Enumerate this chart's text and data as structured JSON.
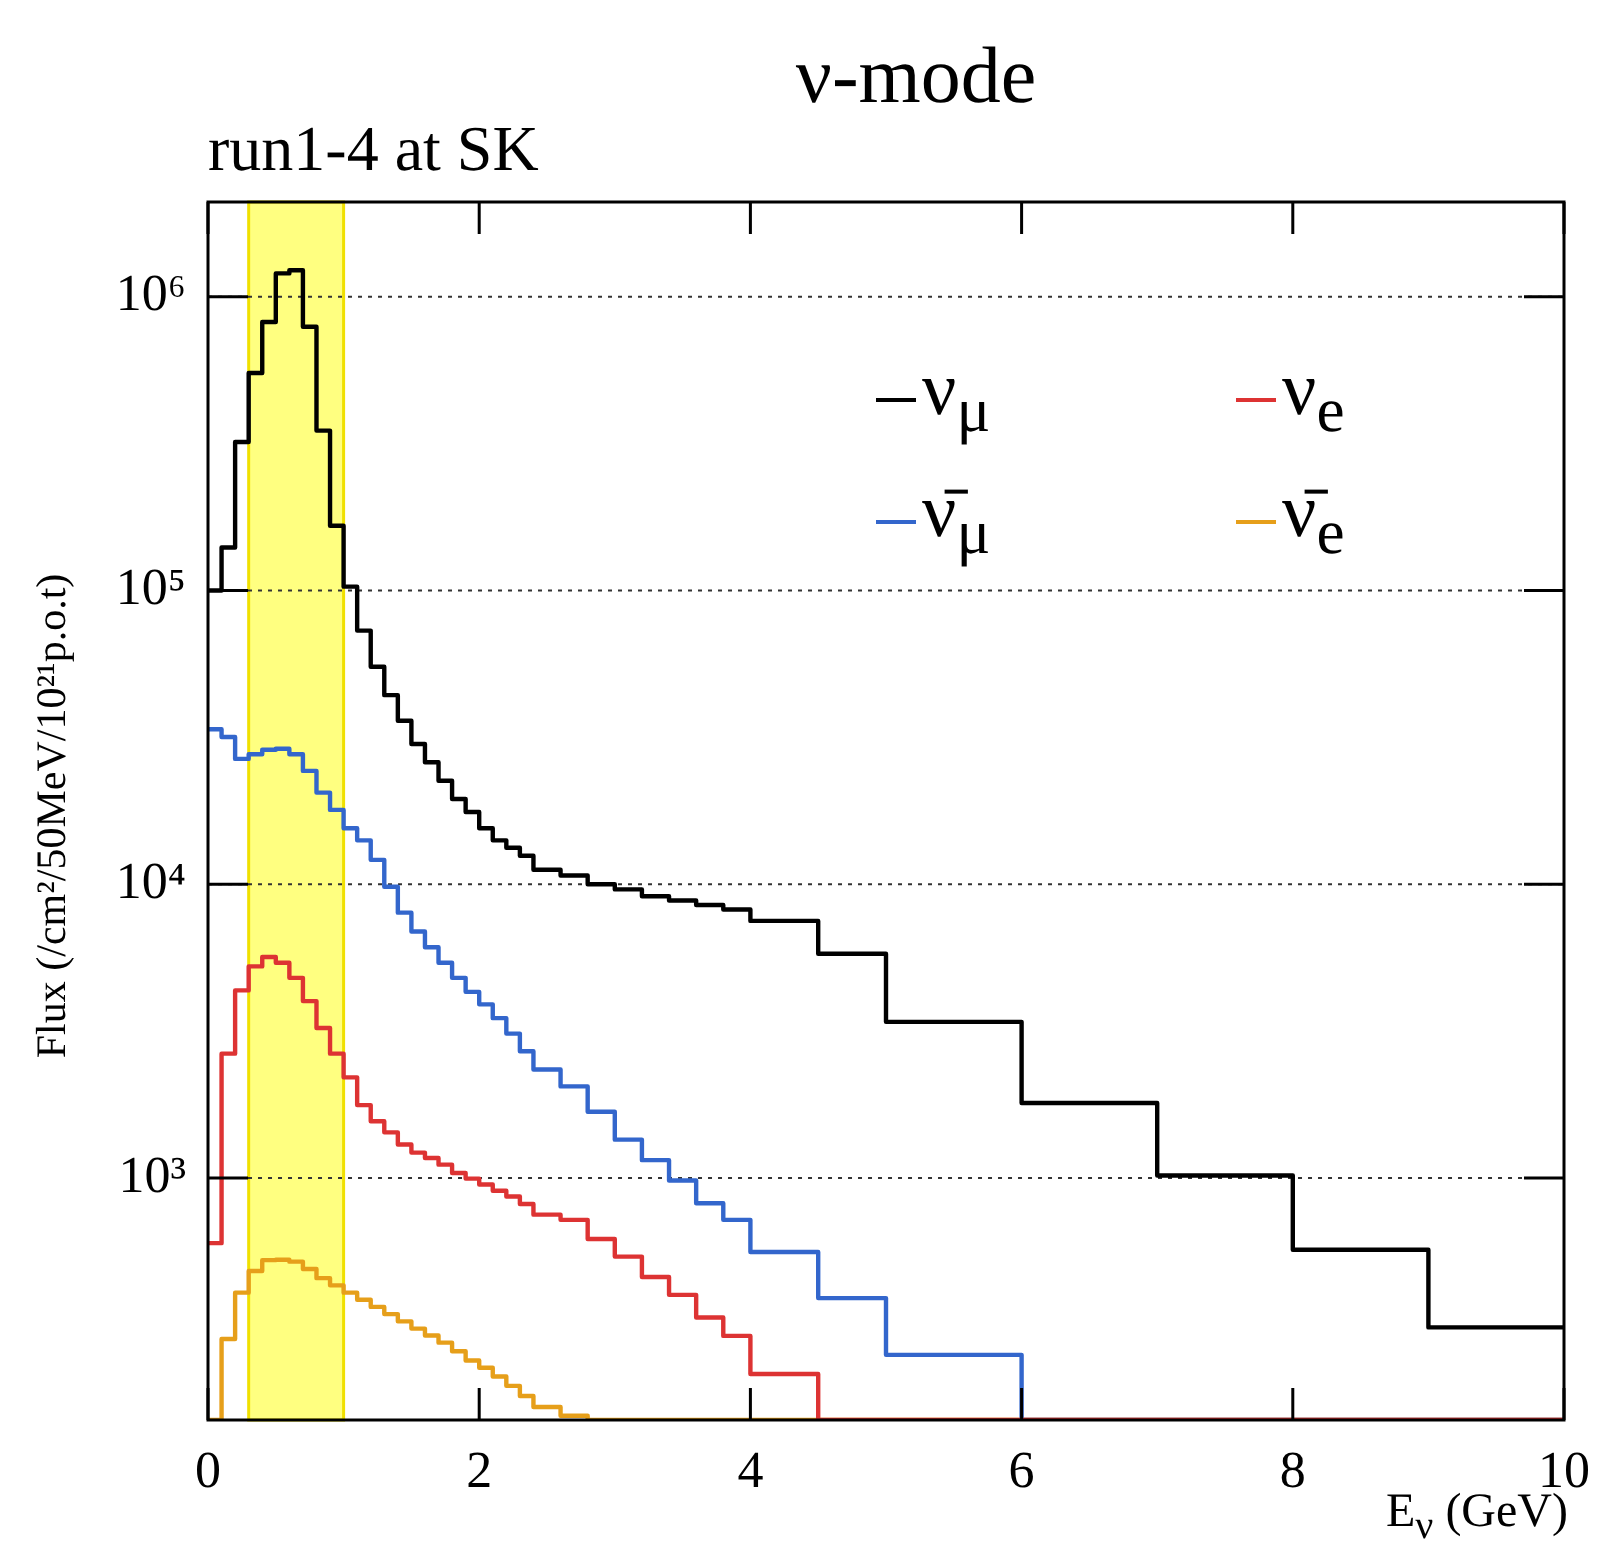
{
  "chart_data": {
    "type": "histogram",
    "title": "ν-mode",
    "subtitle": "run1-4 at SK",
    "xlabel": "E$_{ν}$ (GeV)",
    "ylabel": "Flux (/cm²/50MeV/10²¹p.o.t)",
    "bins": [
      0,
      0.1,
      0.2,
      0.3,
      0.4,
      0.5,
      0.6,
      0.7,
      0.8,
      0.9,
      1.0,
      1.1,
      1.2,
      1.3,
      1.4,
      1.5,
      1.6,
      1.7,
      1.8,
      1.9,
      2.0,
      2.1,
      2.2,
      2.3,
      2.4,
      2.6,
      2.8,
      3.0,
      3.2,
      3.4,
      3.6,
      3.8,
      4.0,
      4.5,
      5,
      6,
      7,
      8,
      9,
      10
    ],
    "series": [
      {
        "name": "ν$_{μ}$",
        "color": "#000000",
        "values": [
          100000,
          140000,
          320000,
          550000,
          820000,
          1200000,
          1230000,
          790000,
          350000,
          166000,
          103000,
          73000,
          55000,
          44000,
          36000,
          30000,
          26000,
          22500,
          19500,
          17600,
          15500,
          14100,
          13300,
          12500,
          11200,
          10700,
          10000,
          9600,
          9100,
          8800,
          8500,
          8200,
          7500,
          5800,
          3400,
          1800,
          1020,
          570,
          310
        ]
      },
      {
        "name": "ν$_{e}$",
        "color": "#dd3333",
        "values": [
          600,
          2650,
          4350,
          5250,
          5650,
          5400,
          4800,
          4000,
          3240,
          2650,
          2200,
          1770,
          1560,
          1430,
          1300,
          1220,
          1170,
          1110,
          1040,
          995,
          950,
          905,
          865,
          815,
          750,
          720,
          620,
          540,
          460,
          400,
          335,
          290,
          215,
          null,
          null,
          null,
          null,
          null,
          null
        ]
      },
      {
        "name": "ν̄$_{μ}$",
        "color": "#3366cc",
        "values": [
          33700,
          31700,
          26700,
          27700,
          28700,
          28900,
          27700,
          24300,
          20500,
          17900,
          15500,
          14100,
          12100,
          9800,
          8000,
          6900,
          6100,
          5400,
          4800,
          4300,
          3900,
          3500,
          3100,
          2700,
          2340,
          2050,
          1680,
          1350,
          1150,
          980,
          820,
          720,
          560,
          390,
          250,
          null,
          null,
          null,
          null
        ]
      },
      {
        "name": "ν̄$_{e}$",
        "color": "#e69f1a",
        "values": [
          null,
          283,
          407,
          482,
          525,
          527,
          519,
          490,
          456,
          431,
          407,
          385,
          364,
          344,
          325,
          307,
          291,
          275,
          257,
          239,
          226,
          211,
          196,
          181,
          166,
          155,
          null,
          null,
          null,
          null,
          null,
          null,
          null,
          null,
          null,
          null,
          null,
          null,
          null
        ]
      }
    ],
    "xlim": [
      0,
      10
    ],
    "xticks": [
      0,
      2,
      4,
      6,
      8,
      10
    ],
    "ylim": [
      150,
      2100000
    ],
    "yticks": [
      {
        "value": 1000,
        "label": "10³"
      },
      {
        "value": 10000,
        "label": "10⁴"
      },
      {
        "value": 100000,
        "label": "10⁵"
      },
      {
        "value": 1000000,
        "label": "10⁶"
      }
    ],
    "log": "y",
    "grid": "y",
    "legend": "top right",
    "bands": [
      {
        "axis": "x",
        "from": 0.3,
        "to": 1.0,
        "color": "#ffff80"
      }
    ]
  }
}
